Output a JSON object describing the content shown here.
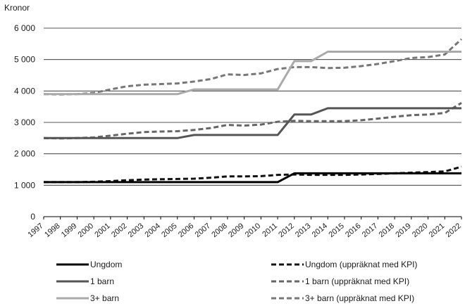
{
  "chart_data": {
    "type": "line",
    "ylabel": "Kronor",
    "ylim": [
      0,
      6000
    ],
    "yticks": [
      0,
      1000,
      2000,
      3000,
      4000,
      5000,
      6000
    ],
    "ytick_labels": [
      "0",
      "1 000",
      "2 000",
      "3 000",
      "4 000",
      "5 000",
      "6 000"
    ],
    "grid": "horizontal",
    "legend_position": "bottom",
    "x": [
      "1997",
      "1998",
      "1999",
      "2000",
      "2001",
      "2002",
      "2003",
      "2004",
      "2005",
      "2006",
      "2007",
      "2008",
      "2009",
      "2010",
      "2011",
      "2012",
      "2013",
      "2014",
      "2015",
      "2016",
      "2017",
      "2018",
      "2019",
      "2020",
      "2021",
      "2022"
    ],
    "series": [
      {
        "name": "Ungdom",
        "color": "#000000",
        "style": "solid",
        "values": [
          1100,
          1100,
          1100,
          1100,
          1100,
          1100,
          1100,
          1100,
          1100,
          1100,
          1100,
          1100,
          1100,
          1100,
          1100,
          1380,
          1380,
          1380,
          1380,
          1380,
          1380,
          1380,
          1380,
          1380,
          1380,
          1380
        ]
      },
      {
        "name": "1 barn",
        "color": "#555555",
        "style": "solid",
        "values": [
          2500,
          2500,
          2500,
          2500,
          2500,
          2500,
          2500,
          2500,
          2500,
          2600,
          2600,
          2600,
          2600,
          2600,
          2600,
          3250,
          3250,
          3450,
          3450,
          3450,
          3450,
          3450,
          3450,
          3450,
          3450,
          3450
        ]
      },
      {
        "name": "3+ barn",
        "color": "#aaaaaa",
        "style": "solid",
        "values": [
          3900,
          3900,
          3900,
          3900,
          3900,
          3900,
          3900,
          3900,
          3900,
          4050,
          4050,
          4050,
          4050,
          4050,
          4050,
          4950,
          4950,
          5250,
          5250,
          5250,
          5250,
          5250,
          5250,
          5250,
          5250,
          5250
        ]
      },
      {
        "name": "Ungdom (uppräknat med KPI)",
        "color": "#111111",
        "style": "dashed",
        "values": [
          1100,
          1100,
          1100,
          1110,
          1130,
          1160,
          1180,
          1190,
          1200,
          1210,
          1240,
          1280,
          1280,
          1290,
          1330,
          1340,
          1330,
          1330,
          1330,
          1340,
          1360,
          1380,
          1400,
          1420,
          1440,
          1590
        ]
      },
      {
        "name": "1 barn (uppräknat med KPI)",
        "color": "#666666",
        "style": "dashed",
        "values": [
          2500,
          2490,
          2500,
          2520,
          2580,
          2640,
          2690,
          2710,
          2720,
          2760,
          2820,
          2920,
          2900,
          2930,
          3020,
          3050,
          3040,
          3040,
          3040,
          3070,
          3120,
          3180,
          3230,
          3250,
          3300,
          3620
        ]
      },
      {
        "name": "3+ barn (uppräknat med KPI)",
        "color": "#777777",
        "style": "dashed",
        "values": [
          3900,
          3890,
          3900,
          3940,
          4050,
          4150,
          4200,
          4220,
          4240,
          4300,
          4380,
          4530,
          4510,
          4560,
          4700,
          4760,
          4760,
          4730,
          4740,
          4790,
          4860,
          4950,
          5050,
          5080,
          5160,
          5650
        ]
      }
    ]
  }
}
